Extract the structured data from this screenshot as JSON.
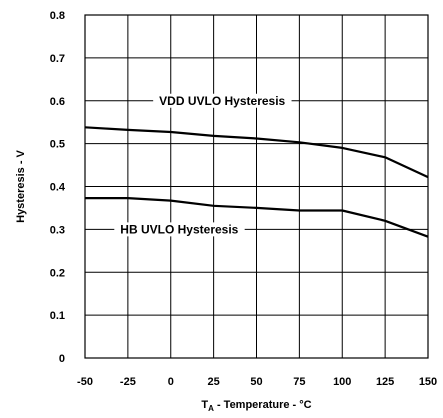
{
  "chart_data": {
    "type": "line",
    "xlabel_main": "T",
    "xlabel_sub": "A",
    "xlabel_rest": " - Temperature - °C",
    "ylabel": "Hysteresis - V",
    "xlim": [
      -50,
      150
    ],
    "ylim": [
      0,
      0.8
    ],
    "x_ticks": [
      -50,
      -25,
      0,
      25,
      50,
      75,
      100,
      125,
      150
    ],
    "y_ticks": [
      0,
      0.1,
      0.2,
      0.3,
      0.4,
      0.5,
      0.6,
      0.7,
      0.8
    ],
    "x_tick_labels": [
      "-50",
      "-25",
      "0",
      "25",
      "50",
      "75",
      "100",
      "125",
      "150"
    ],
    "y_tick_labels": [
      "0",
      "0.1",
      "0.2",
      "0.3",
      "0.4",
      "0.5",
      "0.6",
      "0.7",
      "0.8"
    ],
    "grid": true,
    "series": [
      {
        "name": "VDD UVLO Hysteresis",
        "x": [
          -50,
          -25,
          0,
          25,
          50,
          75,
          100,
          125,
          150
        ],
        "values": [
          0.538,
          0.532,
          0.527,
          0.518,
          0.512,
          0.503,
          0.49,
          0.468,
          0.422
        ]
      },
      {
        "name": "HB UVLO Hysteresis",
        "x": [
          -50,
          -25,
          0,
          25,
          50,
          75,
          100,
          125,
          150
        ],
        "values": [
          0.373,
          0.373,
          0.367,
          0.355,
          0.35,
          0.344,
          0.344,
          0.32,
          0.283
        ]
      }
    ],
    "label_positions_data": [
      {
        "series": 0,
        "x": 30,
        "y": 0.6
      },
      {
        "series": 1,
        "x": 5,
        "y": 0.3
      }
    ]
  }
}
